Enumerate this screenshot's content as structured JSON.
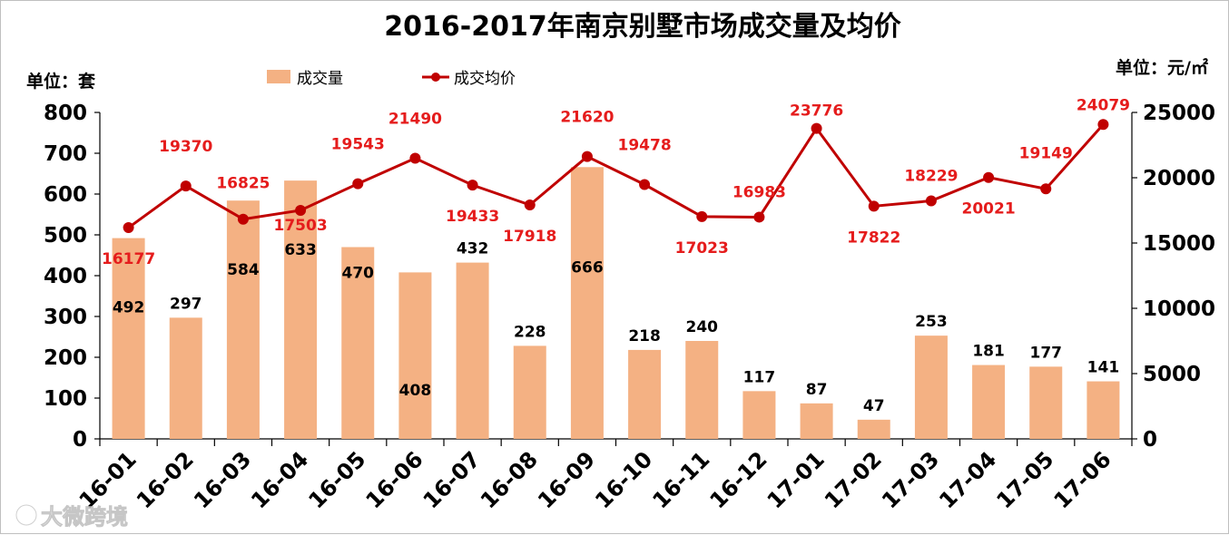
{
  "colors": {
    "bar": "#f4b183",
    "line": "#c00000",
    "line_label": "#e51c1c"
  },
  "chart_data": {
    "type": "bar",
    "title": "2016-2017年南京别墅市场成交量及均价",
    "y_left_label": "单位：套",
    "y_right_label": "单位：元/㎡",
    "categories": [
      "16-01",
      "16-02",
      "16-03",
      "16-04",
      "16-05",
      "16-06",
      "16-07",
      "16-08",
      "16-09",
      "16-10",
      "16-11",
      "16-12",
      "17-01",
      "17-02",
      "17-03",
      "17-04",
      "17-05",
      "17-06"
    ],
    "series": [
      {
        "name": "成交量",
        "type": "bar",
        "axis": "left",
        "values": [
          492,
          297,
          584,
          633,
          470,
          408,
          432,
          228,
          666,
          218,
          240,
          117,
          87,
          47,
          253,
          181,
          177,
          141
        ]
      },
      {
        "name": "成交均价",
        "type": "line",
        "axis": "right",
        "values": [
          16177,
          19370,
          16825,
          17503,
          19543,
          21490,
          19433,
          17918,
          21620,
          19478,
          17023,
          16983,
          23776,
          17822,
          18229,
          20021,
          19149,
          24079
        ]
      }
    ],
    "y_left": {
      "min": 0,
      "max": 800,
      "ticks": [
        0,
        100,
        200,
        300,
        400,
        500,
        600,
        700,
        800
      ]
    },
    "y_right": {
      "min": 0,
      "max": 25000,
      "ticks": [
        0,
        5000,
        10000,
        15000,
        20000,
        25000
      ]
    },
    "legend_position": "top-left",
    "grid": false
  },
  "watermark": "大微跨境"
}
